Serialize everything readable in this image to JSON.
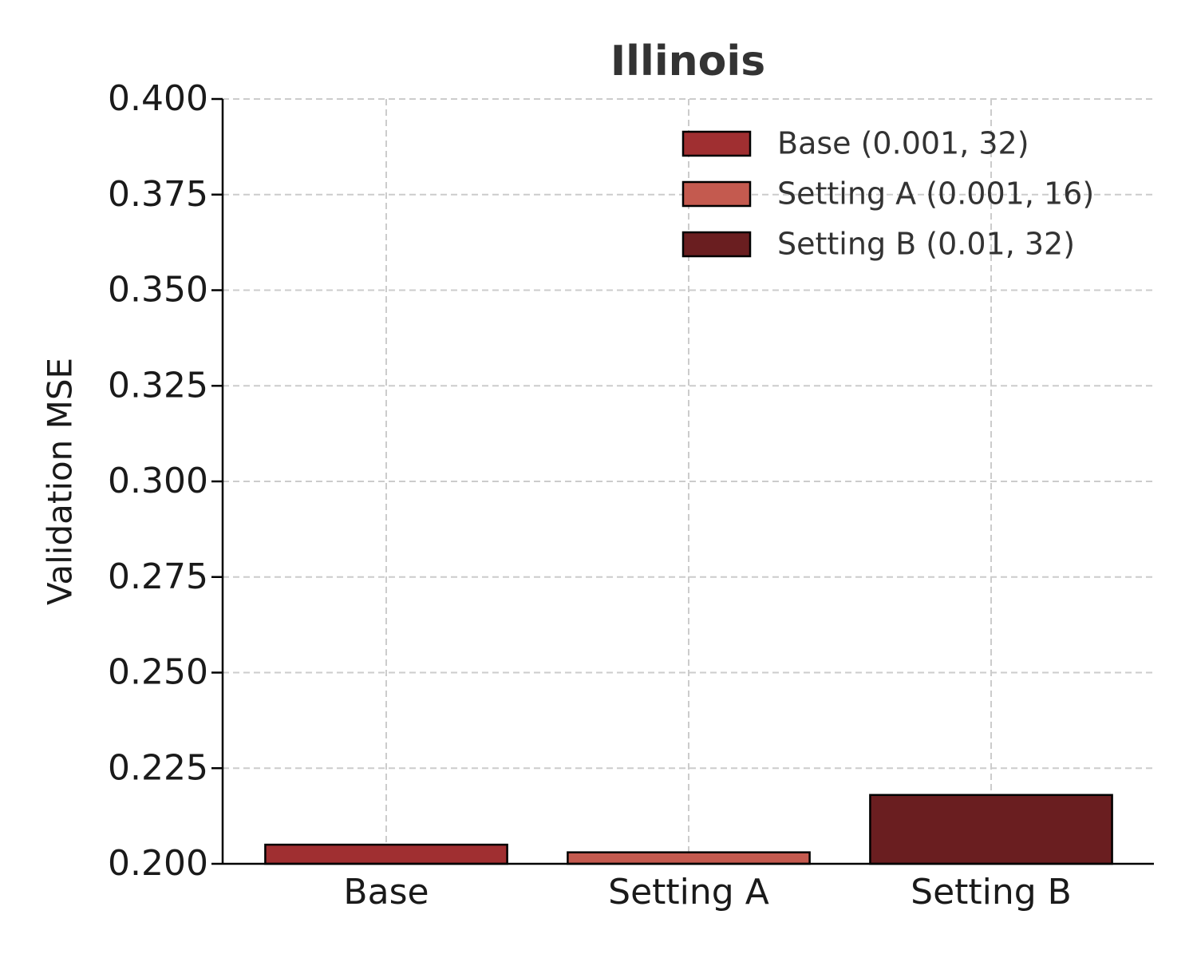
{
  "chart_data": {
    "type": "bar",
    "title": "Illinois",
    "y_label": "Validation MSE",
    "categories": [
      "Base",
      "Setting A",
      "Setting B"
    ],
    "series": [
      {
        "name": "Base (0.001, 32)",
        "color": "#a02f31",
        "values": [
          0.205,
          null,
          null
        ]
      },
      {
        "name": "Setting A (0.001, 16)",
        "color": "#c45a4f",
        "values": [
          null,
          0.203,
          null
        ]
      },
      {
        "name": "Setting B (0.01, 32)",
        "color": "#6a1e20",
        "values": [
          null,
          null,
          0.218
        ]
      }
    ],
    "ylim": [
      0.2,
      0.4
    ],
    "yticks": [
      {
        "value": 0.2,
        "label": "0.200"
      },
      0.225,
      {
        "value": 0.25,
        "label": "0.250"
      },
      0.275,
      {
        "value": 0.3,
        "label": "0.300"
      },
      0.325,
      {
        "value": 0.35,
        "label": "0.350"
      },
      0.375,
      {
        "value": 0.4,
        "label": "0.400"
      }
    ],
    "grid": true,
    "legend": "upper right"
  }
}
